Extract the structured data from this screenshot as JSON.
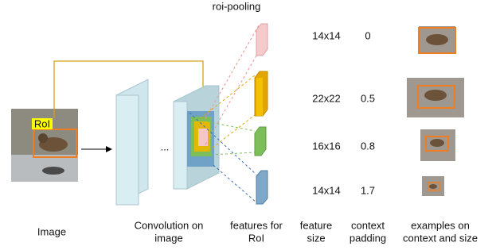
{
  "title": "roi-pooling",
  "image": {
    "roi_label": "RoI",
    "dots": "..."
  },
  "rows": [
    {
      "feature_size": "14x14",
      "context_padding": "0"
    },
    {
      "feature_size": "22x22",
      "context_padding": "0.5"
    },
    {
      "feature_size": "16x16",
      "context_padding": "0.8"
    },
    {
      "feature_size": "14x14",
      "context_padding": "1.7"
    }
  ],
  "captions": [
    {
      "lines": [
        "Image"
      ]
    },
    {
      "lines": [
        "Convolution on",
        "image"
      ]
    },
    {
      "lines": [
        "features for",
        "RoI"
      ]
    },
    {
      "lines": [
        "feature",
        "size"
      ]
    },
    {
      "lines": [
        "context",
        "padding"
      ]
    },
    {
      "lines": [
        "examples on",
        "context and size"
      ]
    }
  ]
}
